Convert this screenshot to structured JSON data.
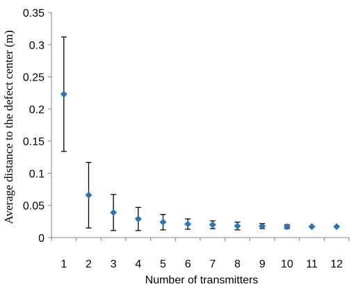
{
  "chart_data": {
    "type": "scatter",
    "title": "",
    "xlabel": "Number of transmitters",
    "ylabel": "Average distance to the defect center (m)",
    "x": [
      1,
      2,
      3,
      4,
      5,
      6,
      7,
      8,
      9,
      10,
      11,
      12
    ],
    "x_ticks": [
      "1",
      "2",
      "3",
      "4",
      "5",
      "6",
      "7",
      "8",
      "9",
      "10",
      "11",
      "12"
    ],
    "y_ticks": [
      "0",
      "0.05",
      "0.1",
      "0.15",
      "0.2",
      "0.25",
      "0.3",
      "0.35"
    ],
    "ylim": [
      0,
      0.35
    ],
    "grid": false,
    "series": [
      {
        "values": [
          0.223,
          0.066,
          0.039,
          0.029,
          0.024,
          0.021,
          0.02,
          0.018,
          0.018,
          0.017,
          0.017,
          0.017
        ],
        "error": [
          0.089,
          0.051,
          0.028,
          0.018,
          0.012,
          0.008,
          0.006,
          0.006,
          0.004,
          0.003,
          0.0,
          0.0
        ],
        "color": "#2e75b6"
      }
    ],
    "axis_color": "#808080",
    "errorbar_color": "#000000"
  }
}
